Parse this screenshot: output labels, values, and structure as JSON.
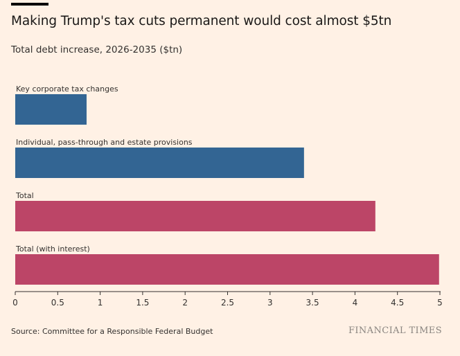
{
  "header": {
    "title": "Making Trump's tax cuts permanent would cost almost $5tn",
    "subtitle": "Total debt increase, 2026-2035 ($tn)"
  },
  "footer": {
    "source": "Source: Committee for a Responsible Federal Budget",
    "brand": "FINANCIAL TIMES"
  },
  "colors": {
    "blue": "#336593",
    "crimson": "#bc4567",
    "axis": "#33302e"
  },
  "chart_data": {
    "type": "bar",
    "orientation": "horizontal",
    "categories": [
      "Key corporate tax changes",
      "Individual, pass-through and estate provisions",
      "Total",
      "Total (with interest)"
    ],
    "values": [
      0.84,
      3.4,
      4.24,
      4.99
    ],
    "bar_colors": [
      "#336593",
      "#336593",
      "#bc4567",
      "#bc4567"
    ],
    "xlim": [
      0,
      5
    ],
    "xticks": [
      0,
      0.5,
      1,
      1.5,
      2,
      2.5,
      3,
      3.5,
      4,
      4.5,
      5
    ],
    "xticklabels": [
      "0",
      "0.5",
      "1",
      "1.5",
      "2",
      "2.5",
      "3",
      "3.5",
      "4",
      "4.5",
      "5"
    ],
    "grid": false,
    "legend": "none"
  }
}
